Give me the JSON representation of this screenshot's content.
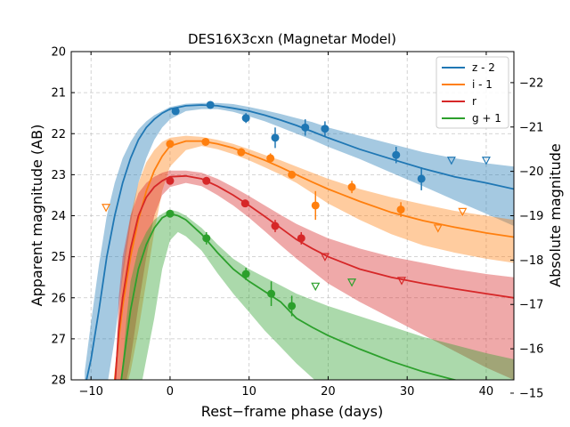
{
  "chart_data": {
    "type": "line",
    "title": "DES16X3cxn (Magnetar Model)",
    "xlabel": "Rest−frame phase (days)",
    "ylabel": "Apparent magnitude (AB)",
    "ylabel_right": "Absolute magnitude",
    "xlim": [
      -12.5,
      43.5
    ],
    "ylim": [
      28,
      20
    ],
    "y2lim": [
      -15.3,
      -22.7
    ],
    "inverted_y": true,
    "grid": true,
    "legend": "top-right",
    "xticks": [
      "−10",
      "0",
      "10",
      "20",
      "30",
      "40"
    ],
    "xtick_values": [
      -10,
      0,
      10,
      20,
      30,
      40
    ],
    "yticks": [
      "20",
      "21",
      "22",
      "23",
      "24",
      "25",
      "26",
      "27",
      "28"
    ],
    "ytick_values": [
      20,
      21,
      22,
      23,
      24,
      25,
      26,
      27,
      28
    ],
    "y2ticks": [
      "−22",
      "−21",
      "−20",
      "−19",
      "−18",
      "−17",
      "−16",
      "−15"
    ],
    "y2tick_values": [
      -22,
      -21,
      -20,
      -19,
      -18,
      -17,
      -16,
      -15
    ],
    "series": [
      {
        "name": "z - 2",
        "color": "#1f77b4",
        "model_x": [
          -10.8,
          -10,
          -9,
          -8,
          -7,
          -6,
          -5,
          -4,
          -3,
          -2,
          -1,
          0,
          2,
          4,
          6,
          8,
          10,
          12,
          14,
          16,
          18,
          20,
          24,
          28,
          32,
          36,
          40,
          43.5
        ],
        "model_y": [
          28.2,
          27.5,
          26.3,
          25.0,
          24.0,
          23.2,
          22.6,
          22.15,
          21.85,
          21.65,
          21.5,
          21.4,
          21.32,
          21.3,
          21.32,
          21.38,
          21.45,
          21.55,
          21.67,
          21.8,
          21.95,
          22.1,
          22.38,
          22.62,
          22.85,
          23.05,
          23.2,
          23.35
        ],
        "band_lo": [
          27.8,
          26.6,
          25.2,
          24.0,
          23.2,
          22.6,
          22.2,
          21.9,
          21.7,
          21.55,
          21.45,
          21.35,
          21.27,
          21.25,
          21.25,
          21.28,
          21.35,
          21.43,
          21.52,
          21.62,
          21.72,
          21.85,
          22.05,
          22.25,
          22.45,
          22.6,
          22.72,
          22.8
        ],
        "band_hi": [
          28.5,
          28.5,
          28.5,
          28.2,
          27.0,
          25.5,
          24.2,
          23.2,
          22.6,
          22.15,
          21.85,
          21.65,
          21.45,
          21.4,
          21.4,
          21.47,
          21.58,
          21.7,
          21.85,
          22.0,
          22.15,
          22.32,
          22.62,
          22.95,
          23.28,
          23.62,
          23.95,
          24.25
        ],
        "points": [
          {
            "x": 0.7,
            "y": 21.45,
            "err": 0.08
          },
          {
            "x": 5.1,
            "y": 21.3,
            "err": 0.06
          },
          {
            "x": 9.6,
            "y": 21.62,
            "err": 0.12
          },
          {
            "x": 13.3,
            "y": 22.1,
            "err": 0.25
          },
          {
            "x": 17.1,
            "y": 21.85,
            "err": 0.2
          },
          {
            "x": 19.6,
            "y": 21.88,
            "err": 0.18
          },
          {
            "x": 28.6,
            "y": 22.52,
            "err": 0.2
          },
          {
            "x": 31.8,
            "y": 23.1,
            "err": 0.28
          }
        ],
        "upper_limits": [
          {
            "x": 35.6,
            "y": 22.65
          },
          {
            "x": 40.0,
            "y": 22.65
          }
        ]
      },
      {
        "name": "i - 1",
        "color": "#ff7f0e",
        "model_x": [
          -7.1,
          -6.5,
          -6,
          -5,
          -4,
          -3,
          -2,
          -1,
          0,
          2,
          4,
          6,
          8,
          10,
          12,
          14,
          16,
          18,
          20,
          24,
          28,
          32,
          36,
          40,
          43.5
        ],
        "model_y": [
          28.2,
          27.0,
          26.2,
          25.0,
          24.1,
          23.4,
          22.9,
          22.55,
          22.3,
          22.18,
          22.18,
          22.25,
          22.35,
          22.5,
          22.65,
          22.82,
          23.0,
          23.18,
          23.35,
          23.65,
          23.92,
          24.12,
          24.28,
          24.42,
          24.52
        ],
        "band_lo": [
          28.3,
          26.5,
          25.3,
          24.0,
          23.2,
          22.7,
          22.4,
          22.2,
          22.1,
          22.05,
          22.08,
          22.15,
          22.25,
          22.38,
          22.52,
          22.65,
          22.8,
          22.95,
          23.1,
          23.35,
          23.55,
          23.72,
          23.88,
          24.0,
          24.1
        ],
        "band_hi": [
          28.5,
          28.5,
          28.5,
          27.8,
          26.8,
          25.6,
          24.4,
          23.4,
          22.8,
          22.4,
          22.3,
          22.38,
          22.5,
          22.65,
          22.82,
          23.0,
          23.2,
          23.45,
          23.7,
          24.1,
          24.45,
          24.72,
          24.9,
          25.05,
          25.15
        ],
        "points": [
          {
            "x": 0.0,
            "y": 22.25,
            "err": 0.08
          },
          {
            "x": 4.5,
            "y": 22.2,
            "err": 0.06
          },
          {
            "x": 9.0,
            "y": 22.45,
            "err": 0.1
          },
          {
            "x": 12.7,
            "y": 22.6,
            "err": 0.12
          },
          {
            "x": 15.4,
            "y": 23.0,
            "err": 0.08
          },
          {
            "x": 18.4,
            "y": 23.75,
            "err": 0.35
          },
          {
            "x": 23.0,
            "y": 23.3,
            "err": 0.15
          },
          {
            "x": 29.2,
            "y": 23.85,
            "err": 0.18
          }
        ],
        "upper_limits": [
          {
            "x": -8.1,
            "y": 23.8
          },
          {
            "x": 33.9,
            "y": 24.3
          },
          {
            "x": 37.0,
            "y": 23.9
          }
        ]
      },
      {
        "name": "r",
        "color": "#d62728",
        "model_x": [
          -7.0,
          -6.5,
          -6,
          -5,
          -4,
          -3,
          -2,
          -1,
          0,
          2,
          4,
          6,
          8,
          10,
          12,
          14,
          16,
          18,
          20,
          24,
          28,
          32,
          36,
          40,
          43.5
        ],
        "model_y": [
          28.2,
          26.8,
          26.0,
          24.8,
          24.0,
          23.55,
          23.3,
          23.15,
          23.05,
          23.03,
          23.1,
          23.28,
          23.5,
          23.75,
          24.02,
          24.3,
          24.58,
          24.8,
          25.0,
          25.3,
          25.5,
          25.65,
          25.78,
          25.9,
          26.0
        ],
        "band_lo": [
          28.3,
          26.0,
          25.0,
          24.0,
          23.45,
          23.2,
          23.05,
          22.95,
          22.9,
          22.9,
          22.95,
          23.1,
          23.3,
          23.52,
          23.75,
          23.98,
          24.2,
          24.38,
          24.55,
          24.8,
          25.0,
          25.15,
          25.3,
          25.42,
          25.5
        ],
        "band_hi": [
          28.5,
          28.5,
          28.5,
          27.5,
          26.2,
          25.0,
          24.0,
          23.5,
          23.3,
          23.2,
          23.28,
          23.5,
          23.75,
          24.05,
          24.38,
          24.72,
          25.05,
          25.35,
          25.65,
          26.1,
          26.5,
          26.9,
          27.3,
          27.7,
          28.0
        ],
        "points": [
          {
            "x": 0.0,
            "y": 23.15,
            "err": 0.08
          },
          {
            "x": 4.6,
            "y": 23.15,
            "err": 0.06
          },
          {
            "x": 9.5,
            "y": 23.7,
            "err": 0.08
          },
          {
            "x": 13.3,
            "y": 24.25,
            "err": 0.15
          },
          {
            "x": 16.6,
            "y": 24.55,
            "err": 0.15
          }
        ],
        "upper_limits": [
          {
            "x": 19.6,
            "y": 25.0
          },
          {
            "x": 29.3,
            "y": 25.58
          }
        ]
      },
      {
        "name": "g + 1",
        "color": "#2ca02c",
        "model_x": [
          -6.3,
          -5.5,
          -5,
          -4,
          -3,
          -2,
          -1,
          0,
          1,
          2,
          4,
          6,
          8,
          10,
          12,
          14,
          16,
          18,
          20,
          24,
          28,
          32,
          36,
          40,
          43.5
        ],
        "model_y": [
          28.2,
          27.0,
          26.3,
          25.3,
          24.7,
          24.3,
          24.05,
          23.95,
          24.0,
          24.1,
          24.45,
          24.9,
          25.3,
          25.6,
          25.85,
          26.1,
          26.5,
          26.72,
          26.92,
          27.25,
          27.55,
          27.8,
          28.0,
          28.2,
          28.35
        ],
        "band_lo": [
          28.3,
          26.5,
          25.6,
          24.8,
          24.4,
          24.1,
          23.95,
          23.85,
          23.9,
          24.0,
          24.3,
          24.7,
          25.05,
          25.3,
          25.5,
          25.7,
          25.9,
          26.05,
          26.2,
          26.45,
          26.7,
          26.95,
          27.15,
          27.35,
          27.5
        ],
        "band_hi": [
          28.5,
          28.5,
          28.5,
          28.5,
          27.5,
          26.5,
          25.3,
          24.6,
          24.4,
          24.5,
          24.85,
          25.4,
          25.9,
          26.35,
          26.8,
          27.2,
          27.6,
          27.95,
          28.3,
          28.5,
          28.5,
          28.5,
          28.5,
          28.5,
          28.5
        ],
        "points": [
          {
            "x": 0.0,
            "y": 23.95,
            "err": 0.08
          },
          {
            "x": 4.6,
            "y": 24.55,
            "err": 0.15
          },
          {
            "x": 9.6,
            "y": 25.42,
            "err": 0.15
          },
          {
            "x": 12.8,
            "y": 25.9,
            "err": 0.3
          },
          {
            "x": 15.4,
            "y": 26.2,
            "err": 0.25
          }
        ],
        "upper_limits": [
          {
            "x": 18.4,
            "y": 25.72
          },
          {
            "x": 23.0,
            "y": 25.62
          }
        ]
      }
    ]
  }
}
